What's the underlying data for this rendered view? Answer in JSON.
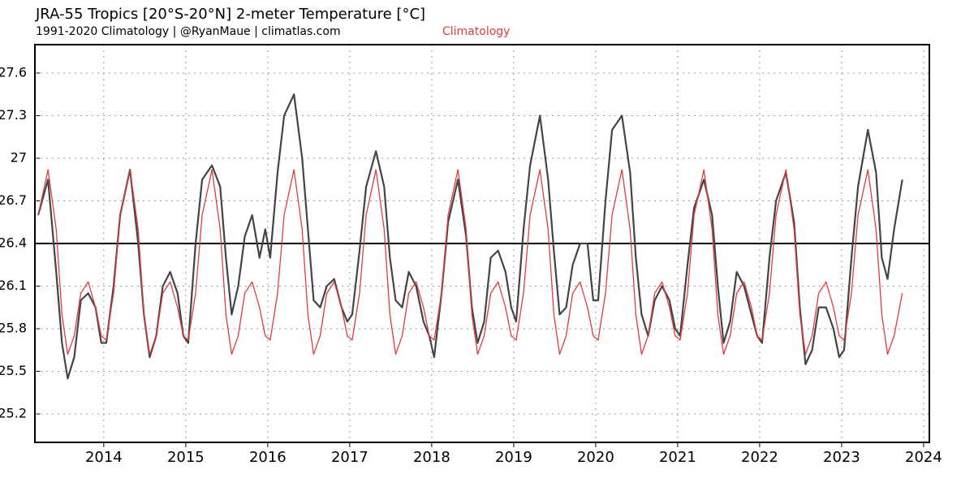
{
  "chart_data": {
    "type": "line",
    "title": "JRA-55 Tropics [20°S-20°N] 2-meter Temperature [°C]",
    "subtitle": "1991-2020 Climatology | @RyanMaue | climatlas.com",
    "legend": "top",
    "x": [
      2013.2,
      2013.32,
      2013.42,
      2013.49,
      2013.56,
      2013.64,
      2013.72,
      2013.81,
      2013.9,
      2013.97,
      2014.03,
      2014.12,
      2014.2,
      2014.32,
      2014.42,
      2014.49,
      2014.56,
      2014.64,
      2014.72,
      2014.81,
      2014.9,
      2014.97,
      2015.03,
      2015.12,
      2015.2,
      2015.32,
      2015.42,
      2015.49,
      2015.56,
      2015.64,
      2015.72,
      2015.81,
      2015.9,
      2015.97,
      2016.03,
      2016.12,
      2016.2,
      2016.32,
      2016.42,
      2016.49,
      2016.56,
      2016.64,
      2016.72,
      2016.81,
      2016.9,
      2016.97,
      2017.03,
      2017.12,
      2017.2,
      2017.32,
      2017.42,
      2017.49,
      2017.56,
      2017.64,
      2017.72,
      2017.81,
      2017.9,
      2017.97,
      2018.03,
      2018.12,
      2018.2,
      2018.32,
      2018.42,
      2018.49,
      2018.56,
      2018.64,
      2018.72,
      2018.81,
      2018.9,
      2018.97,
      2019.03,
      2019.12,
      2019.2,
      2019.32,
      2019.42,
      2019.49,
      2019.56,
      2019.64,
      2019.72,
      2019.81,
      2019.9,
      2019.97,
      2020.03,
      2020.12,
      2020.2,
      2020.32,
      2020.42,
      2020.49,
      2020.56,
      2020.64,
      2020.72,
      2020.81,
      2020.9,
      2020.97,
      2021.03,
      2021.12,
      2021.2,
      2021.32,
      2021.42,
      2021.49,
      2021.56,
      2021.64,
      2021.72,
      2021.81,
      2021.9,
      2021.97,
      2022.03,
      2022.12,
      2022.2,
      2022.32,
      2022.42,
      2022.49,
      2022.56,
      2022.64,
      2022.72,
      2022.81,
      2022.9,
      2022.97,
      2023.03,
      2023.12,
      2023.2,
      2023.32,
      2023.42,
      2023.49,
      2023.56,
      2023.64,
      2023.74
    ],
    "series": [
      {
        "color": "#444444",
        "values": [
          26.6,
          26.85,
          26.2,
          25.7,
          25.45,
          25.6,
          26.0,
          26.05,
          25.95,
          25.7,
          25.7,
          26.1,
          26.6,
          26.92,
          26.4,
          25.9,
          25.6,
          25.75,
          26.1,
          26.2,
          26.05,
          25.75,
          25.7,
          26.4,
          26.85,
          26.95,
          26.8,
          26.3,
          25.9,
          26.1,
          26.45,
          26.6,
          26.3,
          26.5,
          26.3,
          26.9,
          27.3,
          27.45,
          27.0,
          26.5,
          26.0,
          25.95,
          26.1,
          26.15,
          25.95,
          25.85,
          25.9,
          26.35,
          26.8,
          27.05,
          26.8,
          26.3,
          26.0,
          25.95,
          26.2,
          26.1,
          25.85,
          25.75,
          25.6,
          26.05,
          26.55,
          26.85,
          26.45,
          25.95,
          25.7,
          25.85,
          26.3,
          26.35,
          26.2,
          25.95,
          25.85,
          26.5,
          26.95,
          27.3,
          26.85,
          26.35,
          25.9,
          25.95,
          26.25,
          26.4,
          26.4,
          26.0,
          26.0,
          26.7,
          27.2,
          27.3,
          26.9,
          26.3,
          25.9,
          25.75,
          26.0,
          26.1,
          26.0,
          25.8,
          25.75,
          26.25,
          26.65,
          26.85,
          26.6,
          26.1,
          25.7,
          25.85,
          26.2,
          26.1,
          25.9,
          25.75,
          25.7,
          26.3,
          26.7,
          26.9,
          26.55,
          25.95,
          25.55,
          25.65,
          25.95,
          25.95,
          25.8,
          25.6,
          25.65,
          26.3,
          26.8,
          27.2,
          26.9,
          26.3,
          26.15,
          26.5,
          26.85
        ]
      },
      {
        "name": "Climatology",
        "color": "#e03c3c",
        "values": [
          26.6,
          26.92,
          26.5,
          25.9,
          25.62,
          25.75,
          26.05,
          26.13,
          25.95,
          25.75,
          25.72,
          26.05,
          26.6,
          26.92,
          26.5,
          25.9,
          25.62,
          25.75,
          26.05,
          26.13,
          25.95,
          25.75,
          25.72,
          26.05,
          26.6,
          26.92,
          26.5,
          25.9,
          25.62,
          25.75,
          26.05,
          26.13,
          25.95,
          25.75,
          25.72,
          26.05,
          26.6,
          26.92,
          26.5,
          25.9,
          25.62,
          25.75,
          26.05,
          26.13,
          25.95,
          25.75,
          25.72,
          26.05,
          26.6,
          26.92,
          26.5,
          25.9,
          25.62,
          25.75,
          26.05,
          26.13,
          25.95,
          25.75,
          25.72,
          26.05,
          26.6,
          26.92,
          26.5,
          25.9,
          25.62,
          25.75,
          26.05,
          26.13,
          25.95,
          25.75,
          25.72,
          26.05,
          26.6,
          26.92,
          26.5,
          25.9,
          25.62,
          25.75,
          26.05,
          26.13,
          25.95,
          25.75,
          25.72,
          26.05,
          26.6,
          26.92,
          26.5,
          25.9,
          25.62,
          25.75,
          26.05,
          26.13,
          25.95,
          25.75,
          25.72,
          26.05,
          26.6,
          26.92,
          26.5,
          25.9,
          25.62,
          25.75,
          26.05,
          26.13,
          25.95,
          25.75,
          25.72,
          26.05,
          26.6,
          26.92,
          26.5,
          25.9,
          25.62,
          25.75,
          26.05,
          26.13,
          25.95,
          25.75,
          25.72,
          26.05,
          26.6,
          26.92,
          26.5,
          25.9,
          25.62,
          25.75,
          26.05
        ]
      }
    ],
    "hline": 26.4,
    "hline_color": "#000000",
    "xlim": [
      2013.16,
      2024.07
    ],
    "xticks": [
      2014,
      2015,
      2016,
      2017,
      2018,
      2019,
      2020,
      2021,
      2022,
      2023,
      2024
    ],
    "ylim": [
      25.0,
      27.8
    ],
    "yticks": [
      25.2,
      25.5,
      25.8,
      26.1,
      26.4,
      26.7,
      27,
      27.3,
      27.6
    ],
    "grid": true
  }
}
